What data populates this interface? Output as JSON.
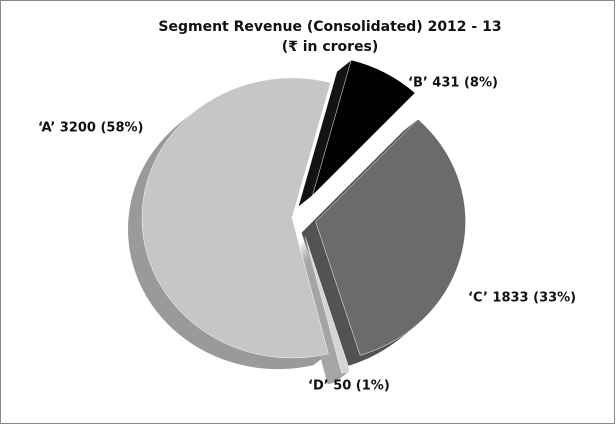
{
  "chart_data": {
    "type": "pie",
    "title": "Segment Revenue (Consolidated) 2012 - 13",
    "subtitle": "(₹ in crores)",
    "categories": [
      "‘A’",
      "‘B’",
      "‘C’",
      "‘D’"
    ],
    "values": [
      3200,
      431,
      1833,
      50
    ],
    "labels": [
      "‘A’ 3200 (58%)",
      "‘B’ 431 (8%)",
      "‘C’ 1833 (33%)",
      "‘D’ 50 (1%)"
    ],
    "colors": [
      "#c6c6c6",
      "#000000",
      "#6b6b6b",
      "#d4d4d4"
    ]
  }
}
